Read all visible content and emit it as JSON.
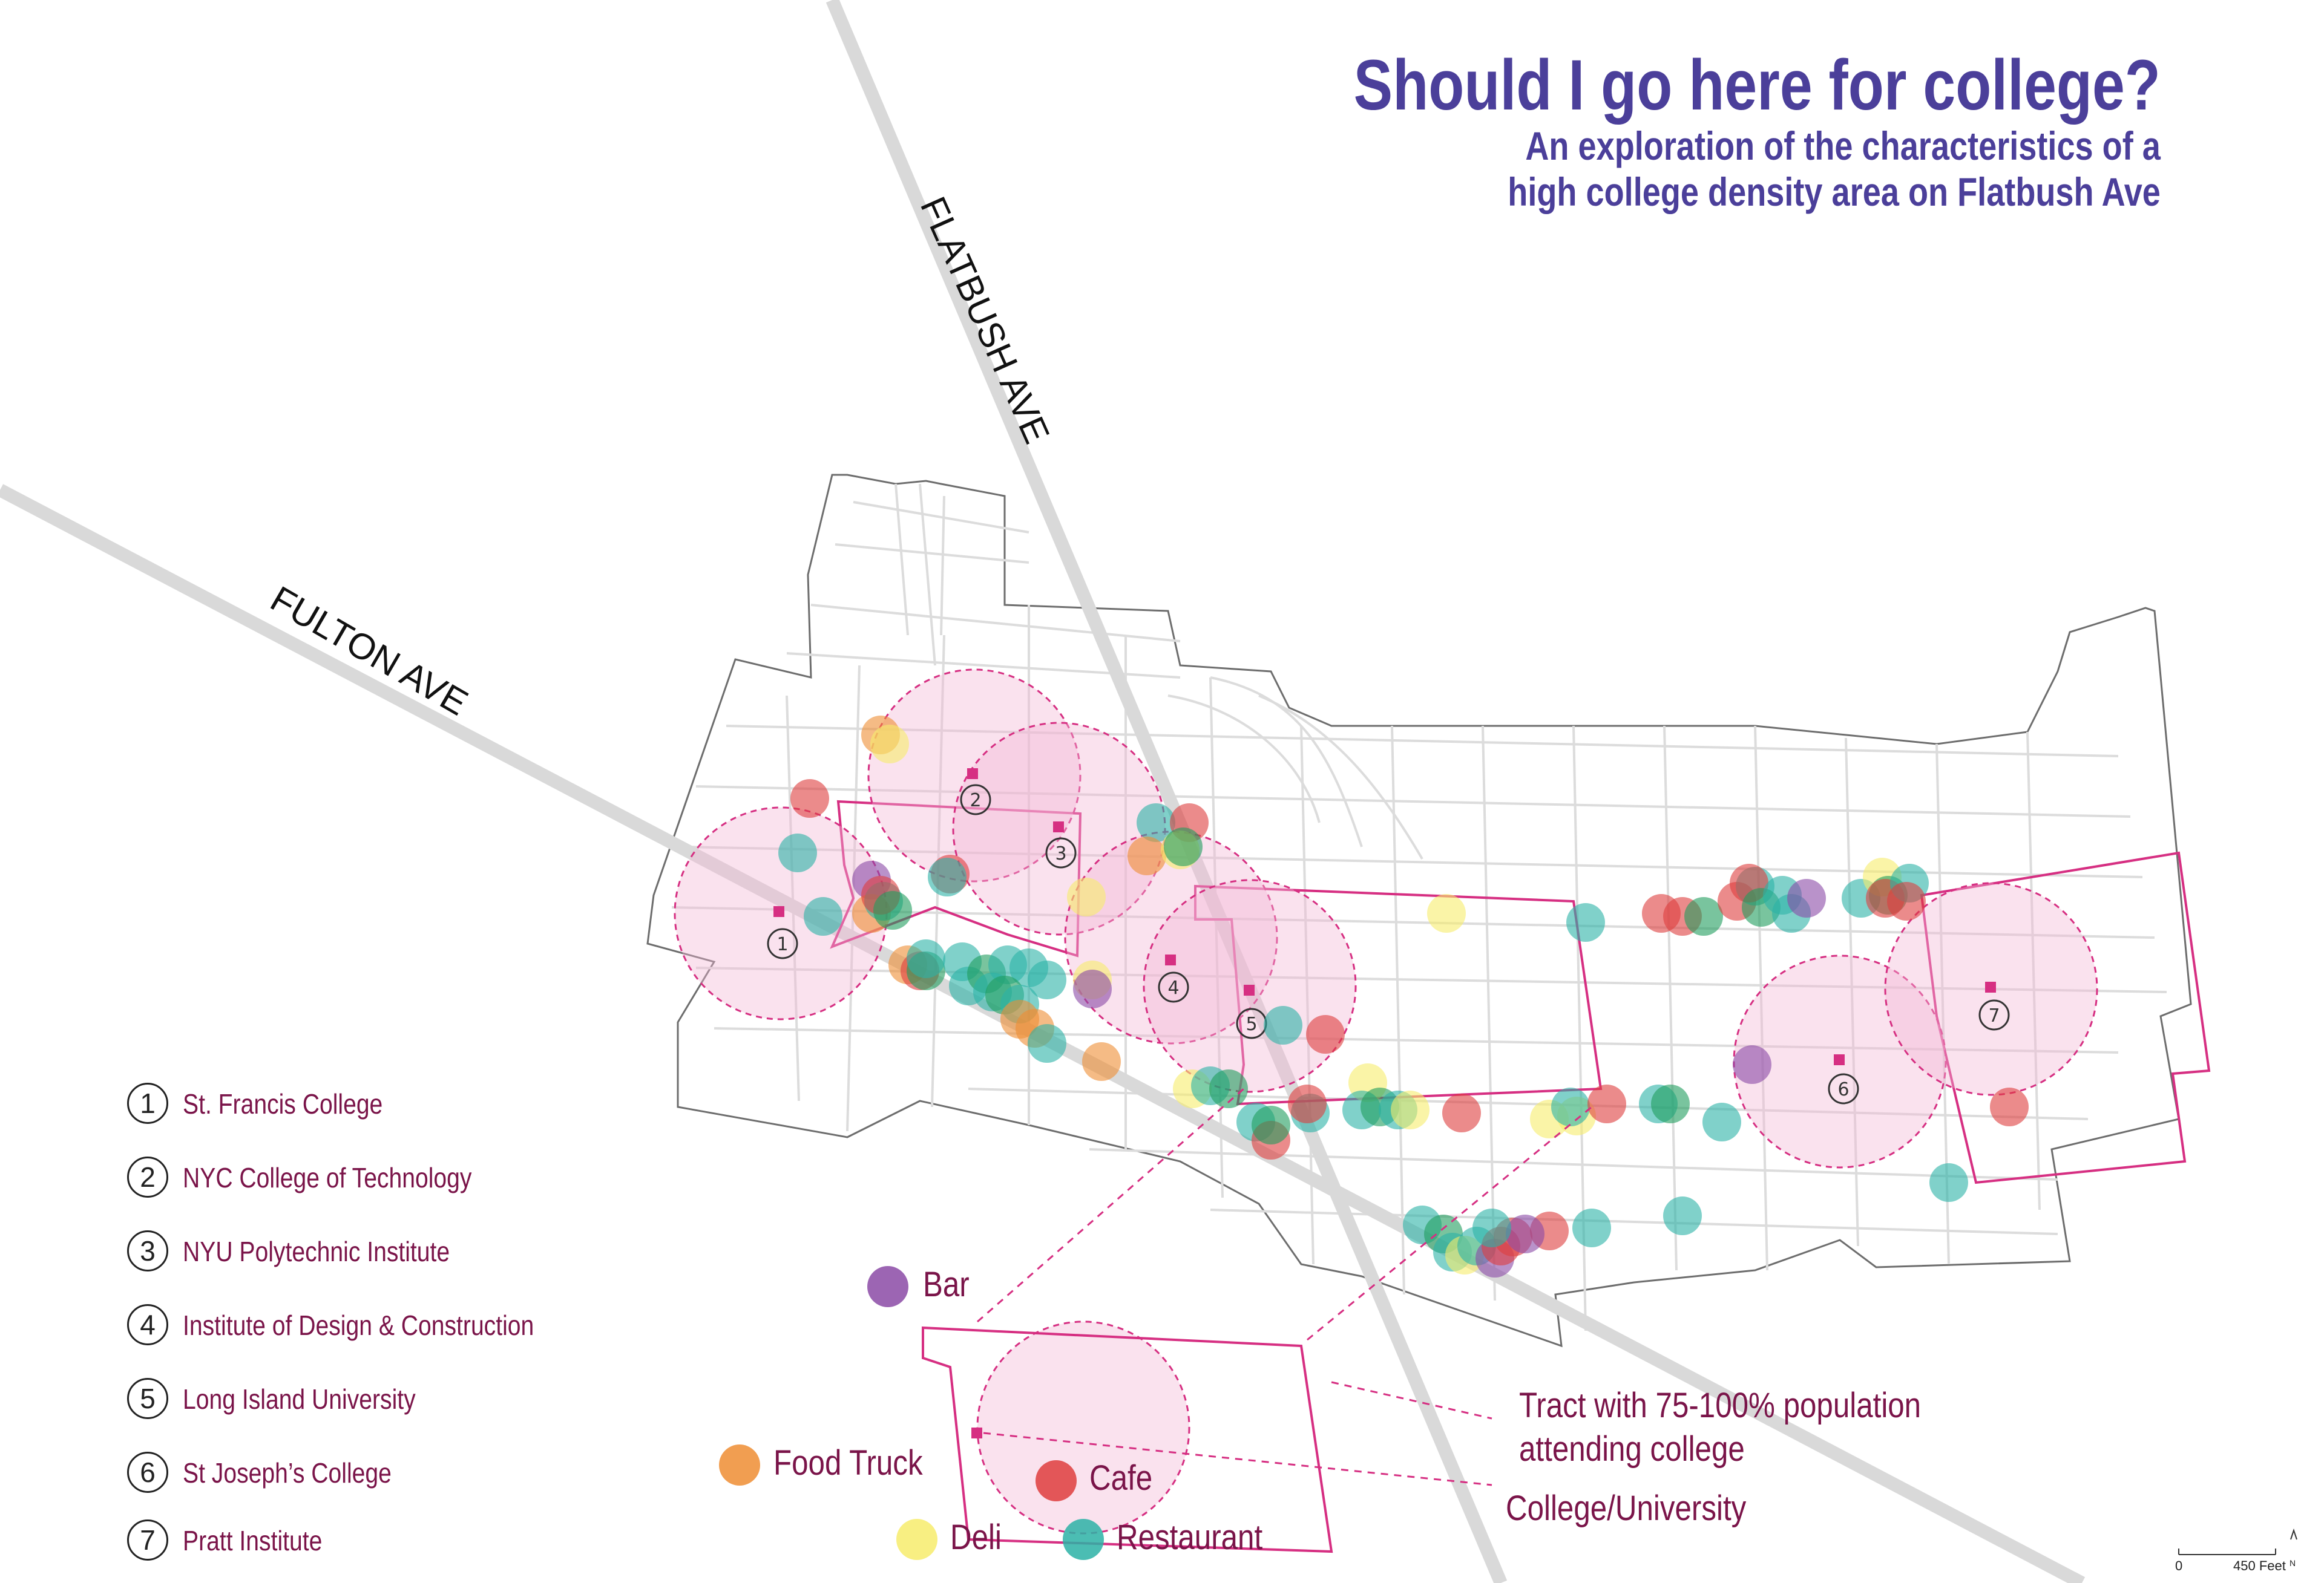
{
  "title": "Should I go here for college?",
  "subtitle_line1": "An exploration of the characteristics of a",
  "subtitle_line2": "high college density area on Flatbush Ave",
  "streets": {
    "flatbush": "FLATBUSH AVE",
    "fulton": "FULTON AVE"
  },
  "colleges": [
    {
      "num": "1",
      "name": "St. Francis College"
    },
    {
      "num": "2",
      "name": "NYC College of Technology"
    },
    {
      "num": "3",
      "name": "NYU Polytechnic Institute"
    },
    {
      "num": "4",
      "name": "Institute of Design & Construction"
    },
    {
      "num": "5",
      "name": "Long Island University"
    },
    {
      "num": "6",
      "name": "St Joseph’s College"
    },
    {
      "num": "7",
      "name": "Pratt Institute"
    }
  ],
  "legend": {
    "bar": "Bar",
    "food_truck": "Food Truck",
    "cafe": "Cafe",
    "deli": "Deli",
    "restaurant": "Restaurant",
    "tract_line1": "Tract with 75-100% population",
    "tract_line2": "attending college",
    "college_university": "College/University"
  },
  "scale": {
    "zero": "0",
    "distance": "450 Feet",
    "north": "N"
  },
  "colors": {
    "title": "#4b3f9a",
    "label": "#7a1449",
    "tract": "#d62f82",
    "bar": "#8b4aa6",
    "food_truck": "#ef8d33",
    "cafe": "#de3d3d",
    "deli": "#f7ec6c",
    "restaurant": "#2bb2a6",
    "green": "#1f9d5d"
  }
}
